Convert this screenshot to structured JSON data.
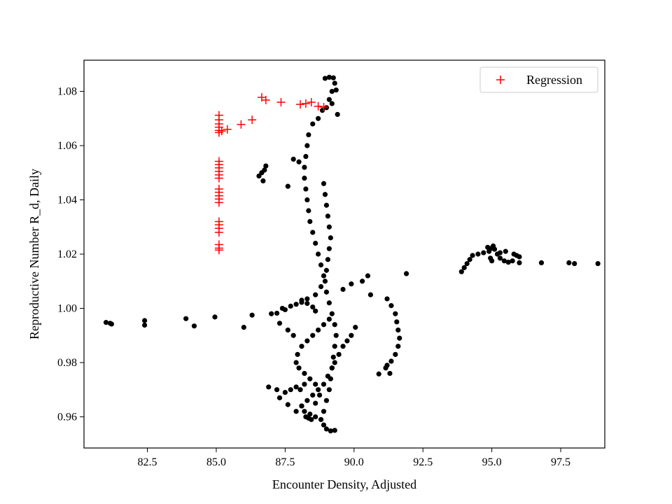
{
  "chart_data": {
    "type": "scatter",
    "title": "",
    "xlabel": "Encounter Density, Adjusted",
    "ylabel": "Reproductive Number R_d, Daily",
    "xlim": [
      80.2,
      99.1
    ],
    "ylim": [
      0.9485,
      1.0915
    ],
    "xticks": [
      82.5,
      85.0,
      87.5,
      90.0,
      92.5,
      95.0,
      97.5
    ],
    "xtick_labels": [
      "82.5",
      "85.0",
      "87.5",
      "90.0",
      "92.5",
      "95.0",
      "97.5"
    ],
    "yticks": [
      0.96,
      0.98,
      1.0,
      1.02,
      1.04,
      1.06,
      1.08
    ],
    "ytick_labels": [
      "0.96",
      "0.98",
      "1.00",
      "1.02",
      "1.04",
      "1.06",
      "1.08"
    ],
    "grid": false,
    "legend": {
      "placement": "top-right",
      "entries": [
        "Regression"
      ]
    },
    "colors": {
      "observed": "#000000",
      "regression": "#ff0000"
    },
    "series": [
      {
        "marker": "circle",
        "color": "#000000",
        "points": [
          [
            81.0,
            0.9948
          ],
          [
            81.15,
            0.9945
          ],
          [
            81.2,
            0.9942
          ],
          [
            82.4,
            0.9955
          ],
          [
            82.4,
            0.9938
          ],
          [
            83.9,
            0.9962
          ],
          [
            84.2,
            0.9935
          ],
          [
            84.95,
            0.9968
          ],
          [
            86.0,
            0.993
          ],
          [
            86.3,
            0.9975
          ],
          [
            87.2,
            0.9982
          ],
          [
            87.5,
            0.9995
          ],
          [
            87.7,
            1.0008
          ],
          [
            87.9,
            1.0015
          ],
          [
            88.1,
            1.0022
          ],
          [
            88.3,
            1.0018
          ],
          [
            88.5,
            1.0005
          ],
          [
            88.6,
            0.999
          ],
          [
            88.1,
            1.003
          ],
          [
            88.3,
            1.0035
          ],
          [
            88.6,
            1.005
          ],
          [
            88.8,
            1.008
          ],
          [
            88.9,
            1.012
          ],
          [
            88.8,
            1.016
          ],
          [
            88.7,
            1.02
          ],
          [
            88.6,
            1.024
          ],
          [
            88.5,
            1.028
          ],
          [
            88.4,
            1.032
          ],
          [
            88.35,
            1.036
          ],
          [
            88.3,
            1.04
          ],
          [
            88.25,
            1.044
          ],
          [
            88.2,
            1.048
          ],
          [
            88.2,
            1.052
          ],
          [
            88.25,
            1.056
          ],
          [
            88.3,
            1.06
          ],
          [
            88.35,
            1.064
          ],
          [
            88.5,
            1.068
          ],
          [
            88.7,
            1.07
          ],
          [
            88.85,
            1.073
          ],
          [
            89.0,
            1.074
          ],
          [
            89.1,
            1.077
          ],
          [
            89.2,
            1.08
          ],
          [
            89.3,
            1.083
          ],
          [
            89.25,
            1.085
          ],
          [
            89.1,
            1.0852
          ],
          [
            88.95,
            1.0848
          ],
          [
            89.4,
            1.0715
          ],
          [
            89.35,
            1.0805
          ],
          [
            89.2,
            1.0755
          ],
          [
            88.9,
            1.046
          ],
          [
            88.95,
            1.042
          ],
          [
            89.0,
            1.038
          ],
          [
            89.05,
            1.034
          ],
          [
            89.1,
            1.03
          ],
          [
            89.15,
            1.026
          ],
          [
            89.1,
            1.022
          ],
          [
            89.05,
            1.018
          ],
          [
            89.0,
            1.014
          ],
          [
            88.95,
            1.01
          ],
          [
            89.0,
            1.006
          ],
          [
            89.1,
            1.002
          ],
          [
            89.2,
            0.998
          ],
          [
            89.3,
            0.994
          ],
          [
            89.35,
            0.99
          ],
          [
            89.3,
            0.986
          ],
          [
            89.25,
            0.982
          ],
          [
            89.2,
            0.978
          ],
          [
            89.15,
            0.974
          ],
          [
            89.1,
            0.97
          ],
          [
            89.0,
            0.966
          ],
          [
            88.9,
            0.962
          ],
          [
            88.8,
            0.959
          ],
          [
            88.9,
            0.957
          ],
          [
            89.0,
            0.9555
          ],
          [
            89.15,
            0.9548
          ],
          [
            89.3,
            0.955
          ],
          [
            88.6,
            0.96
          ],
          [
            88.4,
            0.961
          ],
          [
            88.2,
            0.962
          ],
          [
            88.1,
            0.964
          ],
          [
            88.3,
            0.966
          ],
          [
            88.5,
            0.968
          ],
          [
            88.7,
            0.97
          ],
          [
            88.6,
            0.972
          ],
          [
            88.4,
            0.974
          ],
          [
            88.2,
            0.976
          ],
          [
            88.0,
            0.978
          ],
          [
            87.9,
            0.98
          ],
          [
            87.95,
            0.983
          ],
          [
            88.1,
            0.986
          ],
          [
            88.3,
            0.988
          ],
          [
            88.5,
            0.99
          ],
          [
            88.7,
            0.992
          ],
          [
            88.9,
            0.994
          ],
          [
            89.1,
            0.996
          ],
          [
            88.2,
            0.972
          ],
          [
            88.05,
            0.97
          ],
          [
            87.9,
            0.971
          ],
          [
            87.7,
            0.97
          ],
          [
            87.5,
            0.969
          ],
          [
            87.2,
            0.97
          ],
          [
            86.9,
            0.971
          ],
          [
            87.3,
            0.967
          ],
          [
            87.6,
            0.9645
          ],
          [
            87.9,
            0.962
          ],
          [
            88.1,
            0.964
          ],
          [
            88.25,
            0.96
          ],
          [
            88.35,
            0.9595
          ],
          [
            88.45,
            0.959
          ],
          [
            88.6,
            0.965
          ],
          [
            88.75,
            0.968
          ],
          [
            88.9,
            0.972
          ],
          [
            89.05,
            0.975
          ],
          [
            89.2,
            0.978
          ],
          [
            89.3,
            0.98
          ],
          [
            89.45,
            0.983
          ],
          [
            89.6,
            0.986
          ],
          [
            89.75,
            0.988
          ],
          [
            89.9,
            0.99
          ],
          [
            90.05,
            0.993
          ],
          [
            89.6,
            1.007
          ],
          [
            89.9,
            1.009
          ],
          [
            90.3,
            1.01
          ],
          [
            90.5,
            1.012
          ],
          [
            90.6,
            1.005
          ],
          [
            91.2,
            1.0035
          ],
          [
            91.35,
            1.001
          ],
          [
            91.5,
            0.998
          ],
          [
            91.55,
            0.995
          ],
          [
            91.6,
            0.992
          ],
          [
            91.65,
            0.989
          ],
          [
            91.6,
            0.986
          ],
          [
            91.5,
            0.983
          ],
          [
            91.35,
            0.9805
          ],
          [
            91.2,
            0.979
          ],
          [
            91.15,
            0.978
          ],
          [
            91.3,
            0.976
          ],
          [
            90.9,
            0.9758
          ],
          [
            91.9,
            1.0128
          ],
          [
            86.55,
            1.0488
          ],
          [
            86.65,
            1.05
          ],
          [
            86.75,
            1.051
          ],
          [
            86.8,
            1.0525
          ],
          [
            86.7,
            1.047
          ],
          [
            87.6,
            1.045
          ],
          [
            87.8,
            1.055
          ],
          [
            88.0,
            1.054
          ],
          [
            87.0,
            0.998
          ],
          [
            87.4,
            1.0
          ],
          [
            87.3,
            0.9945
          ],
          [
            87.6,
            0.992
          ],
          [
            87.8,
            0.99
          ],
          [
            93.9,
            1.0135
          ],
          [
            94.0,
            1.015
          ],
          [
            94.1,
            1.0165
          ],
          [
            94.2,
            1.018
          ],
          [
            94.3,
            1.0195
          ],
          [
            94.5,
            1.02
          ],
          [
            94.7,
            1.0205
          ],
          [
            94.9,
            1.021
          ],
          [
            95.0,
            1.0222
          ],
          [
            95.1,
            1.0218
          ],
          [
            94.85,
            1.0225
          ],
          [
            95.05,
            1.023
          ],
          [
            95.2,
            1.02
          ],
          [
            95.3,
            1.0185
          ],
          [
            95.45,
            1.0175
          ],
          [
            95.6,
            1.017
          ],
          [
            95.75,
            1.0175
          ],
          [
            95.9,
            1.0195
          ],
          [
            96.0,
            1.019
          ],
          [
            95.8,
            1.02
          ],
          [
            95.5,
            1.021
          ],
          [
            95.3,
            1.0205
          ],
          [
            94.95,
            1.0185
          ],
          [
            95.0,
            1.0175
          ],
          [
            96.0,
            1.0168
          ],
          [
            96.8,
            1.0168
          ],
          [
            97.8,
            1.0168
          ],
          [
            98.0,
            1.0165
          ],
          [
            98.85,
            1.0165
          ]
        ]
      },
      {
        "name": "Regression",
        "marker": "plus",
        "color": "#ff0000",
        "points": [
          [
            85.1,
            1.0712
          ],
          [
            85.1,
            1.0695
          ],
          [
            85.1,
            1.068
          ],
          [
            85.1,
            1.0668
          ],
          [
            85.1,
            1.0656
          ],
          [
            85.1,
            1.0648
          ],
          [
            85.2,
            1.0654
          ],
          [
            85.4,
            1.066
          ],
          [
            85.9,
            1.0678
          ],
          [
            86.3,
            1.0695
          ],
          [
            86.65,
            1.0778
          ],
          [
            86.8,
            1.0768
          ],
          [
            87.35,
            1.076
          ],
          [
            88.05,
            1.0752
          ],
          [
            88.25,
            1.0755
          ],
          [
            88.45,
            1.076
          ],
          [
            88.7,
            1.0745
          ],
          [
            88.9,
            1.0742
          ],
          [
            85.1,
            1.0542
          ],
          [
            85.1,
            1.053
          ],
          [
            85.1,
            1.0518
          ],
          [
            85.1,
            1.0505
          ],
          [
            85.1,
            1.0492
          ],
          [
            85.1,
            1.048
          ],
          [
            85.1,
            1.044
          ],
          [
            85.1,
            1.0428
          ],
          [
            85.1,
            1.0415
          ],
          [
            85.1,
            1.0403
          ],
          [
            85.1,
            1.039
          ],
          [
            85.1,
            1.032
          ],
          [
            85.1,
            1.0308
          ],
          [
            85.1,
            1.0295
          ],
          [
            85.1,
            1.028
          ],
          [
            85.1,
            1.0235
          ],
          [
            85.1,
            1.0222
          ],
          [
            85.1,
            1.0215
          ]
        ]
      }
    ]
  }
}
